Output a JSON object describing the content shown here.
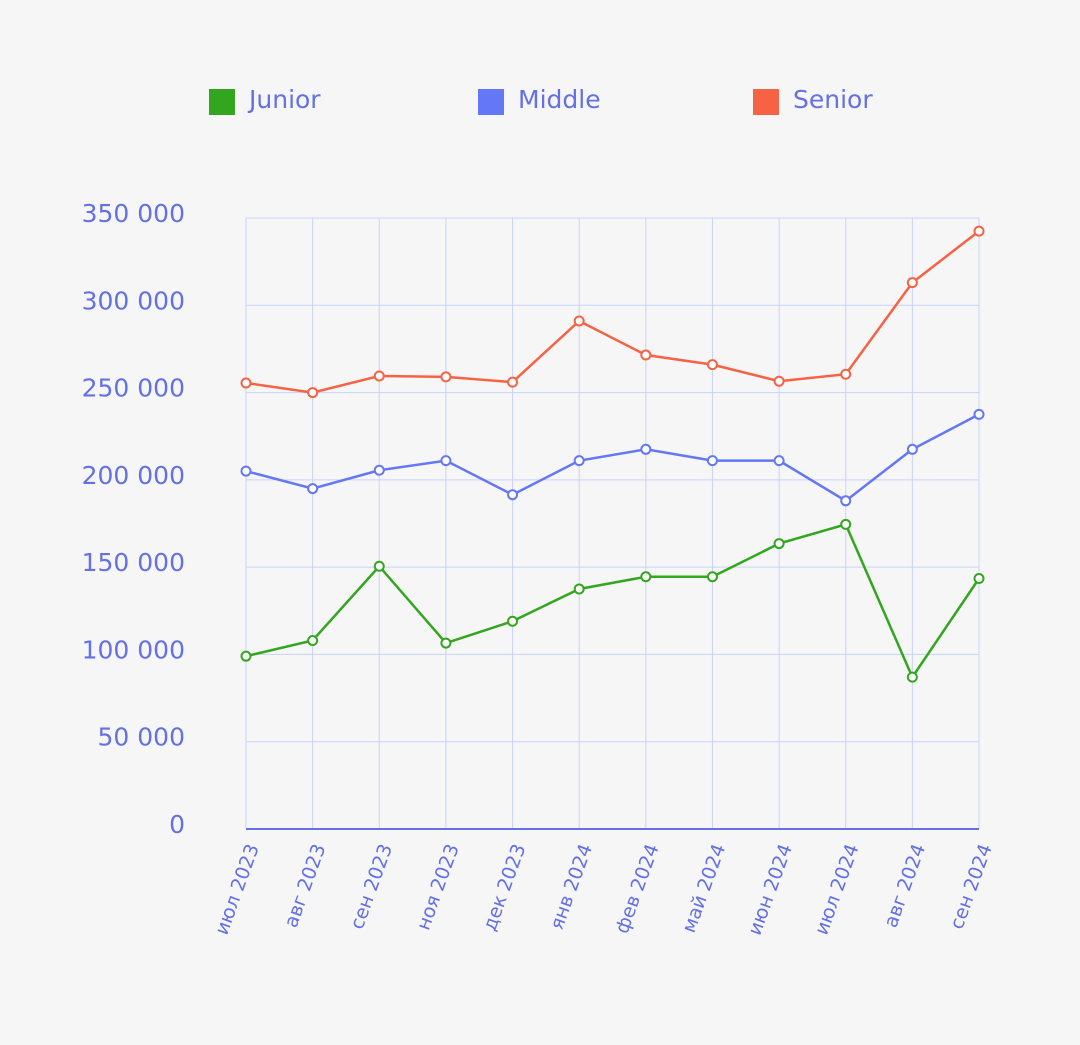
{
  "chart_data": {
    "type": "line",
    "categories": [
      "июл 2023",
      "авг 2023",
      "сен 2023",
      "ноя 2023",
      "дек 2023",
      "янв 2024",
      "фев 2024",
      "май 2024",
      "июн 2024",
      "июл 2024",
      "авг 2024",
      "сен 2024"
    ],
    "series": [
      {
        "name": "Junior",
        "color": "#33a61f",
        "values": [
          99000,
          108000,
          150500,
          106500,
          119000,
          137500,
          144500,
          144500,
          163500,
          174500,
          87000,
          143500
        ]
      },
      {
        "name": "Middle",
        "color": "#6477f6",
        "values": [
          205000,
          195000,
          205500,
          211000,
          191500,
          211000,
          217500,
          211000,
          211000,
          188000,
          217500,
          237500
        ]
      },
      {
        "name": "Senior",
        "color": "#f76244",
        "values": [
          255500,
          250000,
          259500,
          259000,
          256000,
          291000,
          271500,
          266000,
          256500,
          260500,
          313000,
          342500
        ]
      }
    ],
    "ylim": [
      0,
      350000
    ],
    "yticks": [
      0,
      {
        "value": 50000,
        "label": "50 000"
      },
      {
        "value": 100000,
        "label": "100 000"
      },
      {
        "value": 150000,
        "label": "150 000"
      },
      {
        "value": 200000,
        "label": "200 000"
      },
      {
        "value": 250000,
        "label": "250 000"
      },
      {
        "value": 300000,
        "label": "300 000"
      },
      {
        "value": 350000,
        "label": "350 000"
      }
    ],
    "grid": true
  }
}
